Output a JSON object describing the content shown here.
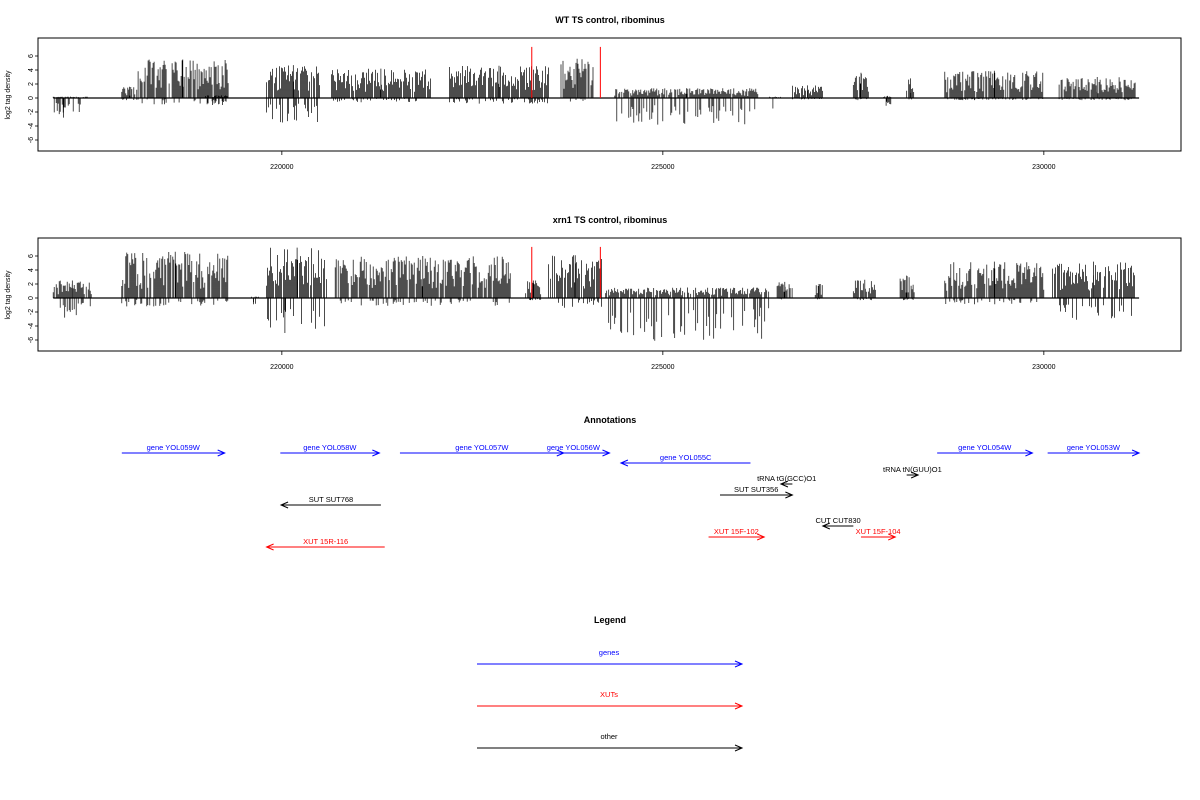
{
  "chart_data": [
    {
      "type": "bar",
      "title": "WT TS control, ribominus",
      "ylabel": "log2 tag density",
      "xlabel": "",
      "xlim": [
        216800,
        231800
      ],
      "ylim": [
        -7,
        8
      ],
      "yticks": [
        -6,
        -4,
        -2,
        0,
        2,
        4,
        6
      ],
      "xticks": [
        220000,
        225000,
        230000
      ],
      "highlight_color": "#ff0000",
      "highlights": [
        {
          "x": 223280,
          "y": 7.3
        },
        {
          "x": 224180,
          "y": 7.3
        }
      ],
      "tracks": [
        {
          "from": 217000,
          "to": 217450,
          "hi": 0.2,
          "lo": -2.8
        },
        {
          "from": 217900,
          "to": 218100,
          "hi": 1.6,
          "lo": -0.3
        },
        {
          "from": 218100,
          "to": 219300,
          "hi": 5.5,
          "lo": -0.9
        },
        {
          "from": 219000,
          "to": 219300,
          "hi": 0.4,
          "lo": -1.0
        },
        {
          "from": 219800,
          "to": 220500,
          "hi": 4.7,
          "lo": -3.5
        },
        {
          "from": 220650,
          "to": 221950,
          "hi": 4.2,
          "lo": -0.6
        },
        {
          "from": 222200,
          "to": 223500,
          "hi": 4.6,
          "lo": -0.8
        },
        {
          "from": 223650,
          "to": 224100,
          "hi": 5.6,
          "lo": -0.5
        },
        {
          "from": 224370,
          "to": 226250,
          "hi": 1.4,
          "lo": -3.8
        },
        {
          "from": 226400,
          "to": 226550,
          "hi": 0.2,
          "lo": -1.5
        },
        {
          "from": 226700,
          "to": 227100,
          "hi": 1.8,
          "lo": -0.2
        },
        {
          "from": 227500,
          "to": 227700,
          "hi": 3.6,
          "lo": -0.3
        },
        {
          "from": 227900,
          "to": 228000,
          "hi": 0.3,
          "lo": -1.1
        },
        {
          "from": 228200,
          "to": 228300,
          "hi": 2.8,
          "lo": -0.2
        },
        {
          "from": 228700,
          "to": 230000,
          "hi": 3.9,
          "lo": -0.3
        },
        {
          "from": 230200,
          "to": 231200,
          "hi": 3.0,
          "lo": -0.3
        }
      ]
    },
    {
      "type": "bar",
      "title": "xrn1 TS control, ribominus",
      "ylabel": "log2 tag density",
      "xlabel": "",
      "xlim": [
        216800,
        231800
      ],
      "ylim": [
        -7,
        8
      ],
      "yticks": [
        -6,
        -4,
        -2,
        0,
        2,
        4,
        6
      ],
      "xticks": [
        220000,
        225000,
        230000
      ],
      "highlight_color": "#ff0000",
      "highlights": [
        {
          "x": 223280,
          "y": 7.3
        },
        {
          "x": 224180,
          "y": 7.3
        }
      ],
      "tracks": [
        {
          "from": 217000,
          "to": 217500,
          "hi": 2.5,
          "lo": -2.8
        },
        {
          "from": 217900,
          "to": 219300,
          "hi": 6.6,
          "lo": -1.2
        },
        {
          "from": 219600,
          "to": 219700,
          "hi": 0.2,
          "lo": -0.9
        },
        {
          "from": 219800,
          "to": 220600,
          "hi": 7.2,
          "lo": -5.0
        },
        {
          "from": 220700,
          "to": 223000,
          "hi": 6.0,
          "lo": -1.1
        },
        {
          "from": 223200,
          "to": 223400,
          "hi": 2.5,
          "lo": -0.3
        },
        {
          "from": 223500,
          "to": 224200,
          "hi": 6.1,
          "lo": -1.4
        },
        {
          "from": 224250,
          "to": 226400,
          "hi": 1.5,
          "lo": -6.1
        },
        {
          "from": 226500,
          "to": 226700,
          "hi": 2.3,
          "lo": -0.2
        },
        {
          "from": 227000,
          "to": 227100,
          "hi": 2.0,
          "lo": -0.2
        },
        {
          "from": 227500,
          "to": 227800,
          "hi": 2.6,
          "lo": -0.3
        },
        {
          "from": 228100,
          "to": 228300,
          "hi": 3.2,
          "lo": -0.3
        },
        {
          "from": 228700,
          "to": 230000,
          "hi": 5.2,
          "lo": -0.9
        },
        {
          "from": 230100,
          "to": 231200,
          "hi": 5.2,
          "lo": -3.1
        }
      ]
    },
    {
      "type": "annotation-track",
      "title": "Annotations",
      "colors": {
        "genes": "#0000ff",
        "XUTs": "#ff0000",
        "other": "#000000"
      },
      "features": [
        {
          "label": "gene YOL059W",
          "start": 217900,
          "end": 219250,
          "strand": "+",
          "kind": "genes",
          "row": 0
        },
        {
          "label": "gene YOL058W",
          "start": 219980,
          "end": 221280,
          "strand": "+",
          "kind": "genes",
          "row": 0
        },
        {
          "label": "gene YOL057W",
          "start": 221550,
          "end": 223700,
          "strand": "+",
          "kind": "genes",
          "row": 0
        },
        {
          "label": "gene YOL056W",
          "start": 223350,
          "end": 224300,
          "strand": "+",
          "kind": "genes",
          "row": 0
        },
        {
          "label": "gene YOL055C",
          "start": 224450,
          "end": 226150,
          "strand": "-",
          "kind": "genes",
          "row": 1
        },
        {
          "label": "gene YOL054W",
          "start": 228600,
          "end": 229850,
          "strand": "+",
          "kind": "genes",
          "row": 0
        },
        {
          "label": "gene YOL053W",
          "start": 230050,
          "end": 231250,
          "strand": "+",
          "kind": "genes",
          "row": 0
        },
        {
          "label": "tRNA tG(GCC)O1",
          "start": 226550,
          "end": 226700,
          "strand": "-",
          "kind": "other",
          "row": 3
        },
        {
          "label": "tRNA tN(GUU)O1",
          "start": 228200,
          "end": 228350,
          "strand": "+",
          "kind": "other",
          "row": 2
        },
        {
          "label": "SUT SUT356",
          "start": 225750,
          "end": 226700,
          "strand": "+",
          "kind": "other",
          "row": 4
        },
        {
          "label": "SUT SUT768",
          "start": 219990,
          "end": 221300,
          "strand": "-",
          "kind": "other",
          "row": 5
        },
        {
          "label": "CUT CUT830",
          "start": 227100,
          "end": 227500,
          "strand": "-",
          "kind": "other",
          "row": 7
        },
        {
          "label": "XUT 15F-102",
          "start": 225600,
          "end": 226330,
          "strand": "+",
          "kind": "XUTs",
          "row": 8
        },
        {
          "label": "XUT 15F-104",
          "start": 227600,
          "end": 228050,
          "strand": "+",
          "kind": "XUTs",
          "row": 8
        },
        {
          "label": "XUT 15R-116",
          "start": 219800,
          "end": 221350,
          "strand": "-",
          "kind": "XUTs",
          "row": 9
        }
      ]
    },
    {
      "type": "legend",
      "title": "Legend",
      "entries": [
        {
          "label": "genes",
          "color": "#0000ff"
        },
        {
          "label": "XUTs",
          "color": "#ff0000"
        },
        {
          "label": "other",
          "color": "#000000"
        }
      ]
    }
  ]
}
